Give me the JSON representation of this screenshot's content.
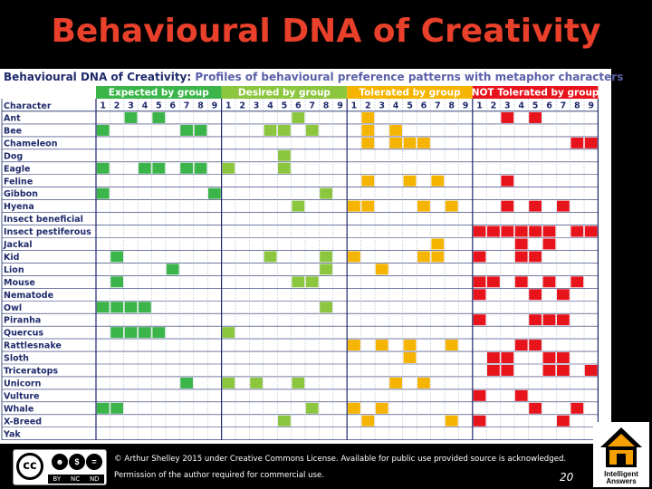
{
  "slide": {
    "title": "Behavioural DNA of Creativity",
    "subtitle_bold": "Behavioural DNA of Creativity:",
    "subtitle_rest": " Profiles of behavioural preference patterns with metaphor characters",
    "character_header": "Character",
    "page_number": "20"
  },
  "groups": [
    {
      "label": "Expected by group",
      "color": "#3bb54a",
      "header_color": "#3bb54a"
    },
    {
      "label": "Desired by group",
      "color": "#8cc63f",
      "header_color": "#8cc63f"
    },
    {
      "label": "Tolerated by group",
      "color": "#f5b400",
      "header_color": "#f5b400"
    },
    {
      "label": "NOT Tolerated by group",
      "color": "#e8141b",
      "header_color": "#e8141b"
    }
  ],
  "column_numbers": [
    "1",
    "2",
    "3",
    "4",
    "5",
    "6",
    "7",
    "8",
    "9"
  ],
  "characters": [
    {
      "name": "Ant",
      "cells": [
        [
          3,
          5
        ],
        [
          6
        ],
        [
          2
        ],
        [
          3,
          5
        ]
      ]
    },
    {
      "name": "Bee",
      "cells": [
        [
          1,
          7,
          8
        ],
        [
          4,
          5,
          7
        ],
        [
          2,
          4
        ],
        []
      ]
    },
    {
      "name": "Chameleon",
      "cells": [
        [],
        [],
        [
          2,
          4,
          5,
          6
        ],
        [
          8,
          9
        ]
      ]
    },
    {
      "name": "Dog",
      "cells": [
        [],
        [
          5
        ],
        [],
        []
      ]
    },
    {
      "name": "Eagle",
      "cells": [
        [
          1,
          4,
          5,
          7,
          8
        ],
        [
          1,
          5
        ],
        [],
        []
      ]
    },
    {
      "name": "Feline",
      "cells": [
        [],
        [],
        [
          2,
          5,
          7
        ],
        [
          3
        ]
      ]
    },
    {
      "name": "Gibbon",
      "cells": [
        [
          1,
          9
        ],
        [
          8
        ],
        [],
        []
      ]
    },
    {
      "name": "Hyena",
      "cells": [
        [],
        [
          6
        ],
        [
          1,
          2,
          6,
          8
        ],
        [
          3,
          5,
          7
        ]
      ]
    },
    {
      "name": "Insect beneficial",
      "cells": [
        [],
        [],
        [],
        []
      ]
    },
    {
      "name": "Insect pestiferous",
      "cells": [
        [],
        [],
        [],
        [
          1,
          2,
          3,
          4,
          5,
          6,
          8,
          9
        ]
      ]
    },
    {
      "name": "Jackal",
      "cells": [
        [],
        [],
        [
          7
        ],
        [
          4,
          6
        ]
      ]
    },
    {
      "name": "Kid",
      "cells": [
        [
          2
        ],
        [
          4,
          8
        ],
        [
          1,
          6,
          7
        ],
        [
          1,
          4,
          5
        ]
      ]
    },
    {
      "name": "Lion",
      "cells": [
        [
          6
        ],
        [
          8
        ],
        [
          3
        ],
        []
      ]
    },
    {
      "name": "Mouse",
      "cells": [
        [
          2
        ],
        [
          6,
          7
        ],
        [],
        [
          1,
          2,
          4,
          6,
          8
        ]
      ]
    },
    {
      "name": "Nematode",
      "cells": [
        [],
        [],
        [],
        [
          1,
          5,
          7
        ]
      ]
    },
    {
      "name": "Owl",
      "cells": [
        [
          1,
          2,
          3,
          4
        ],
        [
          8
        ],
        [],
        []
      ]
    },
    {
      "name": "Piranha",
      "cells": [
        [],
        [],
        [],
        [
          1,
          5,
          6,
          7
        ]
      ]
    },
    {
      "name": "Quercus",
      "cells": [
        [
          2,
          3,
          4,
          5
        ],
        [
          1
        ],
        [],
        []
      ]
    },
    {
      "name": "Rattlesnake",
      "cells": [
        [],
        [],
        [
          1,
          3,
          5,
          8
        ],
        [
          4,
          5
        ]
      ]
    },
    {
      "name": "Sloth",
      "cells": [
        [],
        [],
        [
          5
        ],
        [
          2,
          3,
          6,
          7
        ]
      ]
    },
    {
      "name": "Triceratops",
      "cells": [
        [],
        [],
        [],
        [
          2,
          3,
          6,
          7,
          9
        ]
      ]
    },
    {
      "name": "Unicorn",
      "cells": [
        [
          7
        ],
        [
          1,
          3,
          6
        ],
        [
          4,
          6
        ],
        []
      ]
    },
    {
      "name": "Vulture",
      "cells": [
        [],
        [],
        [],
        [
          1,
          4
        ]
      ]
    },
    {
      "name": "Whale",
      "cells": [
        [
          1,
          2
        ],
        [
          7
        ],
        [
          1,
          3
        ],
        [
          5,
          8
        ]
      ]
    },
    {
      "name": "X-Breed",
      "cells": [
        [],
        [
          5
        ],
        [
          2,
          8
        ],
        [
          1,
          7
        ]
      ]
    },
    {
      "name": "Yak",
      "cells": [
        [],
        [],
        [],
        []
      ]
    }
  ],
  "footer": {
    "copyright_line1": "© Arthur Shelley 2015 under Creative Commons License.  Available for public use provided source is acknowledged.",
    "copyright_line2": "Permission of the author required for commercial use.",
    "cc_badge": "cc",
    "cc_terms": [
      "BY",
      "NC",
      "ND"
    ],
    "logo_text_1": "Intelligent",
    "logo_text_2": "Answers"
  },
  "icons": [
    "creative-commons-icon",
    "intelligent-answers-logo-icon"
  ]
}
